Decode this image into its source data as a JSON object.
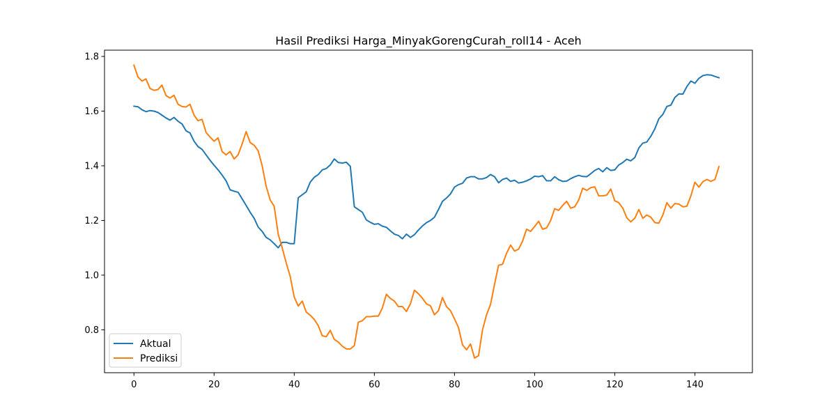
{
  "chart_data": {
    "type": "line",
    "title": "Hasil Prediksi Harga_MinyakGorengCurah_roll14 - Aceh",
    "xlabel": "",
    "ylabel": "",
    "xlim": [
      -7.35,
      154.35
    ],
    "ylim": [
      0.643,
      1.823
    ],
    "xticks": [
      0,
      20,
      40,
      60,
      80,
      100,
      120,
      140
    ],
    "yticks": [
      0.8,
      1.0,
      1.2,
      1.4,
      1.6,
      1.8
    ],
    "xtick_labels": [
      "0",
      "20",
      "40",
      "60",
      "80",
      "100",
      "120",
      "140"
    ],
    "ytick_labels": [
      "0.8",
      "1.0",
      "1.2",
      "1.4",
      "1.6",
      "1.8"
    ],
    "grid": false,
    "legend_position": "lower-left",
    "series": [
      {
        "name": "Aktual",
        "color": "#1f77b4",
        "values": [
          1.618,
          1.616,
          1.605,
          1.598,
          1.602,
          1.6,
          1.595,
          1.585,
          1.575,
          1.567,
          1.577,
          1.563,
          1.553,
          1.528,
          1.52,
          1.49,
          1.47,
          1.46,
          1.44,
          1.42,
          1.402,
          1.385,
          1.366,
          1.345,
          1.312,
          1.307,
          1.303,
          1.279,
          1.255,
          1.23,
          1.208,
          1.176,
          1.16,
          1.138,
          1.129,
          1.115,
          1.1,
          1.12,
          1.12,
          1.115,
          1.115,
          1.283,
          1.294,
          1.305,
          1.34,
          1.358,
          1.368,
          1.385,
          1.39,
          1.403,
          1.425,
          1.412,
          1.41,
          1.413,
          1.398,
          1.25,
          1.24,
          1.23,
          1.202,
          1.193,
          1.186,
          1.188,
          1.179,
          1.175,
          1.162,
          1.15,
          1.145,
          1.133,
          1.15,
          1.138,
          1.148,
          1.165,
          1.18,
          1.192,
          1.2,
          1.212,
          1.24,
          1.27,
          1.282,
          1.297,
          1.322,
          1.331,
          1.336,
          1.355,
          1.36,
          1.36,
          1.352,
          1.352,
          1.357,
          1.368,
          1.36,
          1.338,
          1.35,
          1.355,
          1.343,
          1.347,
          1.337,
          1.34,
          1.345,
          1.352,
          1.362,
          1.36,
          1.364,
          1.345,
          1.345,
          1.36,
          1.349,
          1.343,
          1.344,
          1.353,
          1.36,
          1.365,
          1.361,
          1.36,
          1.371,
          1.383,
          1.39,
          1.378,
          1.393,
          1.383,
          1.385,
          1.403,
          1.412,
          1.424,
          1.418,
          1.43,
          1.465,
          1.483,
          1.487,
          1.508,
          1.535,
          1.572,
          1.588,
          1.617,
          1.622,
          1.65,
          1.663,
          1.662,
          1.69,
          1.71,
          1.702,
          1.72,
          1.73,
          1.733,
          1.732,
          1.727,
          1.722
        ]
      },
      {
        "name": "Prediksi",
        "color": "#ff7f0e",
        "values": [
          1.768,
          1.725,
          1.71,
          1.718,
          1.683,
          1.676,
          1.679,
          1.695,
          1.657,
          1.648,
          1.658,
          1.625,
          1.617,
          1.615,
          1.625,
          1.585,
          1.565,
          1.57,
          1.522,
          1.505,
          1.49,
          1.502,
          1.452,
          1.44,
          1.452,
          1.425,
          1.44,
          1.48,
          1.525,
          1.485,
          1.475,
          1.455,
          1.4,
          1.325,
          1.275,
          1.252,
          1.15,
          1.1,
          1.045,
          0.995,
          0.92,
          0.887,
          0.905,
          0.865,
          0.853,
          0.838,
          0.815,
          0.778,
          0.775,
          0.798,
          0.765,
          0.755,
          0.74,
          0.73,
          0.73,
          0.742,
          0.828,
          0.833,
          0.848,
          0.848,
          0.85,
          0.85,
          0.88,
          0.93,
          0.915,
          0.905,
          0.885,
          0.885,
          0.867,
          0.895,
          0.945,
          0.932,
          0.915,
          0.895,
          0.888,
          0.855,
          0.87,
          0.918,
          0.885,
          0.87,
          0.84,
          0.808,
          0.745,
          0.727,
          0.748,
          0.697,
          0.705,
          0.8,
          0.855,
          0.893,
          0.967,
          1.036,
          1.04,
          1.08,
          1.11,
          1.088,
          1.095,
          1.125,
          1.168,
          1.16,
          1.178,
          1.197,
          1.168,
          1.173,
          1.2,
          1.243,
          1.237,
          1.255,
          1.27,
          1.245,
          1.25,
          1.275,
          1.318,
          1.31,
          1.32,
          1.323,
          1.29,
          1.29,
          1.293,
          1.315,
          1.272,
          1.265,
          1.245,
          1.21,
          1.195,
          1.208,
          1.24,
          1.208,
          1.22,
          1.212,
          1.192,
          1.19,
          1.22,
          1.265,
          1.245,
          1.262,
          1.26,
          1.25,
          1.252,
          1.29,
          1.34,
          1.322,
          1.342,
          1.35,
          1.343,
          1.35,
          1.397
        ]
      }
    ]
  }
}
